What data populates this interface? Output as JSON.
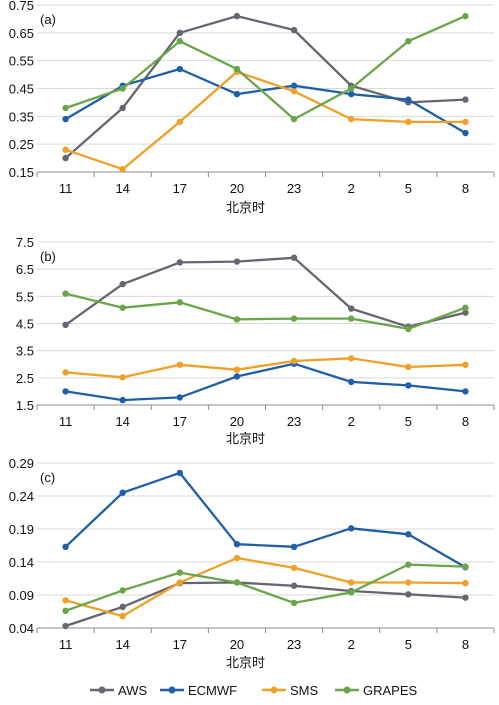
{
  "chart_data": [
    {
      "type": "line",
      "panel_label": "(a)",
      "xlabel": "北京时",
      "categories": [
        "11",
        "14",
        "17",
        "20",
        "23",
        "2",
        "5",
        "8"
      ],
      "yticks": [
        "0.15",
        "0.25",
        "0.35",
        "0.45",
        "0.55",
        "0.65",
        "0.75"
      ],
      "ylim": [
        0.15,
        0.75
      ],
      "grid": "horizontal",
      "series": [
        {
          "name": "AWS",
          "color": "#666671",
          "values": [
            0.2,
            0.38,
            0.65,
            0.71,
            0.66,
            0.46,
            0.4,
            0.41
          ]
        },
        {
          "name": "ECMWF",
          "color": "#1f5fa8",
          "values": [
            0.34,
            0.46,
            0.52,
            0.43,
            0.46,
            0.43,
            0.41,
            0.29
          ]
        },
        {
          "name": "SMS",
          "color": "#f0a024",
          "values": [
            0.23,
            0.16,
            0.33,
            0.51,
            0.44,
            0.34,
            0.33,
            0.33
          ]
        },
        {
          "name": "GRAPES",
          "color": "#6aa54a",
          "values": [
            0.38,
            0.45,
            0.62,
            0.52,
            0.34,
            0.45,
            0.62,
            0.71
          ]
        }
      ]
    },
    {
      "type": "line",
      "panel_label": "(b)",
      "xlabel": "北京时",
      "categories": [
        "11",
        "14",
        "17",
        "20",
        "23",
        "2",
        "5",
        "8"
      ],
      "yticks": [
        "1.5",
        "2.5",
        "3.5",
        "4.5",
        "5.5",
        "6.5",
        "7.5"
      ],
      "ylim": [
        1.5,
        7.5
      ],
      "grid": "horizontal",
      "series": [
        {
          "name": "AWS",
          "color": "#666671",
          "values": [
            4.45,
            5.95,
            6.75,
            6.78,
            6.92,
            5.05,
            4.38,
            4.9
          ]
        },
        {
          "name": "ECMWF",
          "color": "#1f5fa8",
          "values": [
            2.0,
            1.68,
            1.78,
            2.55,
            3.02,
            2.35,
            2.22,
            2.0
          ]
        },
        {
          "name": "SMS",
          "color": "#f0a024",
          "values": [
            2.7,
            2.52,
            2.98,
            2.8,
            3.12,
            3.22,
            2.9,
            2.98
          ]
        },
        {
          "name": "GRAPES",
          "color": "#6aa54a",
          "values": [
            5.6,
            5.08,
            5.28,
            4.65,
            4.68,
            4.68,
            4.3,
            5.08
          ]
        }
      ]
    },
    {
      "type": "line",
      "panel_label": "(c)",
      "xlabel": "北京时",
      "categories": [
        "11",
        "14",
        "17",
        "20",
        "23",
        "2",
        "5",
        "8"
      ],
      "yticks": [
        "0.04",
        "0.09",
        "0.14",
        "0.19",
        "0.24",
        "0.29"
      ],
      "ylim": [
        0.04,
        0.29
      ],
      "grid": "horizontal",
      "series": [
        {
          "name": "AWS",
          "color": "#666671",
          "values": [
            0.043,
            0.072,
            0.108,
            0.109,
            0.104,
            0.096,
            0.091,
            0.086
          ]
        },
        {
          "name": "ECMWF",
          "color": "#1f5fa8",
          "values": [
            0.163,
            0.245,
            0.275,
            0.167,
            0.163,
            0.191,
            0.182,
            0.132
          ]
        },
        {
          "name": "SMS",
          "color": "#f0a024",
          "values": [
            0.082,
            0.058,
            0.109,
            0.146,
            0.131,
            0.109,
            0.109,
            0.108
          ]
        },
        {
          "name": "GRAPES",
          "color": "#6aa54a",
          "values": [
            0.066,
            0.097,
            0.124,
            0.109,
            0.078,
            0.094,
            0.136,
            0.133
          ]
        }
      ]
    }
  ],
  "legend": {
    "placement": "bottom",
    "items": [
      {
        "name": "AWS",
        "color": "#666671"
      },
      {
        "name": "ECMWF",
        "color": "#1f5fa8"
      },
      {
        "name": "SMS",
        "color": "#f0a024"
      },
      {
        "name": "GRAPES",
        "color": "#6aa54a"
      }
    ]
  }
}
